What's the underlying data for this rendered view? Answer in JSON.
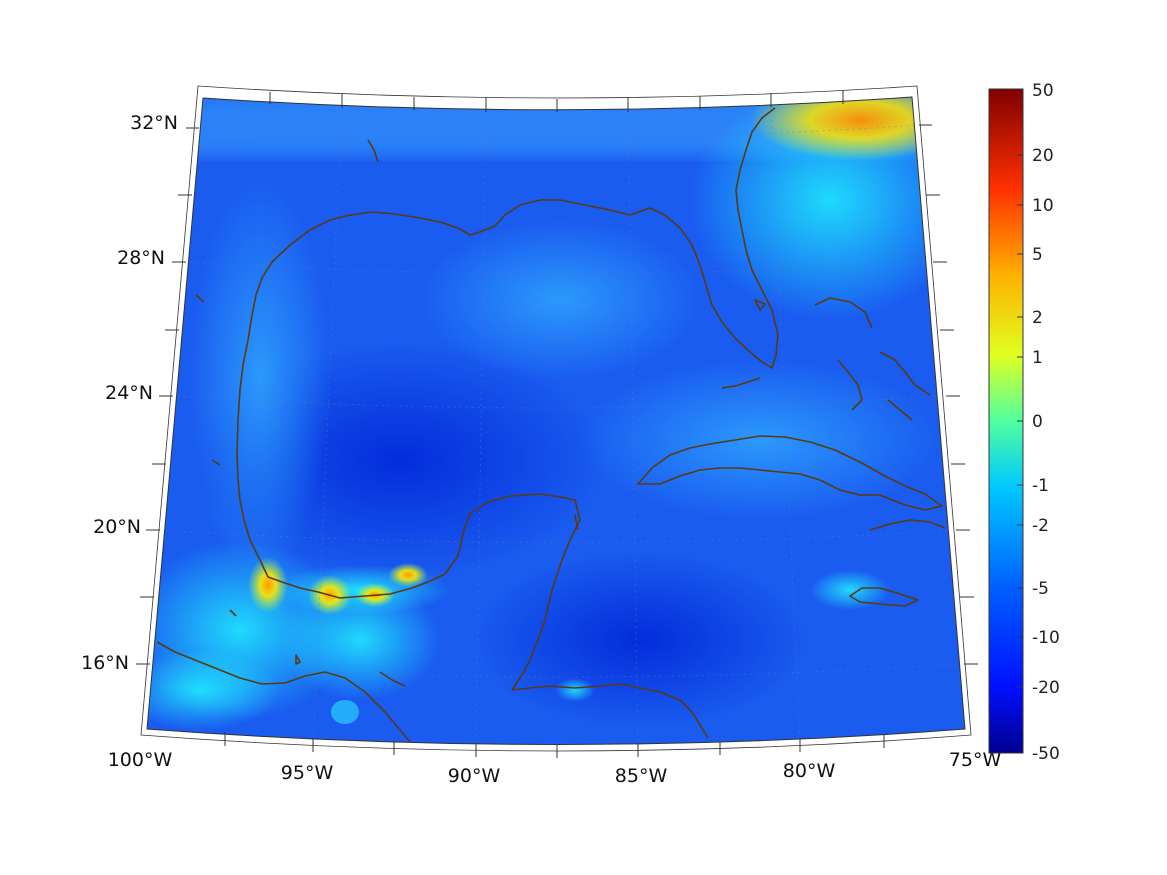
{
  "map": {
    "lon_labels": [
      "100°W",
      "95°W",
      "90°W",
      "85°W",
      "80°W",
      "75°W"
    ],
    "lat_labels": [
      "32°N",
      "28°N",
      "24°N",
      "20°N",
      "16°N"
    ]
  },
  "colorbar": {
    "tick_labels": [
      "50",
      "20",
      "10",
      "5",
      "2",
      "1",
      "0",
      "-1",
      "-2",
      "-5",
      "-10",
      "-20",
      "-50"
    ]
  },
  "colors": {
    "coastline": "#5a3a10",
    "field_base": "#1a5cf0"
  }
}
